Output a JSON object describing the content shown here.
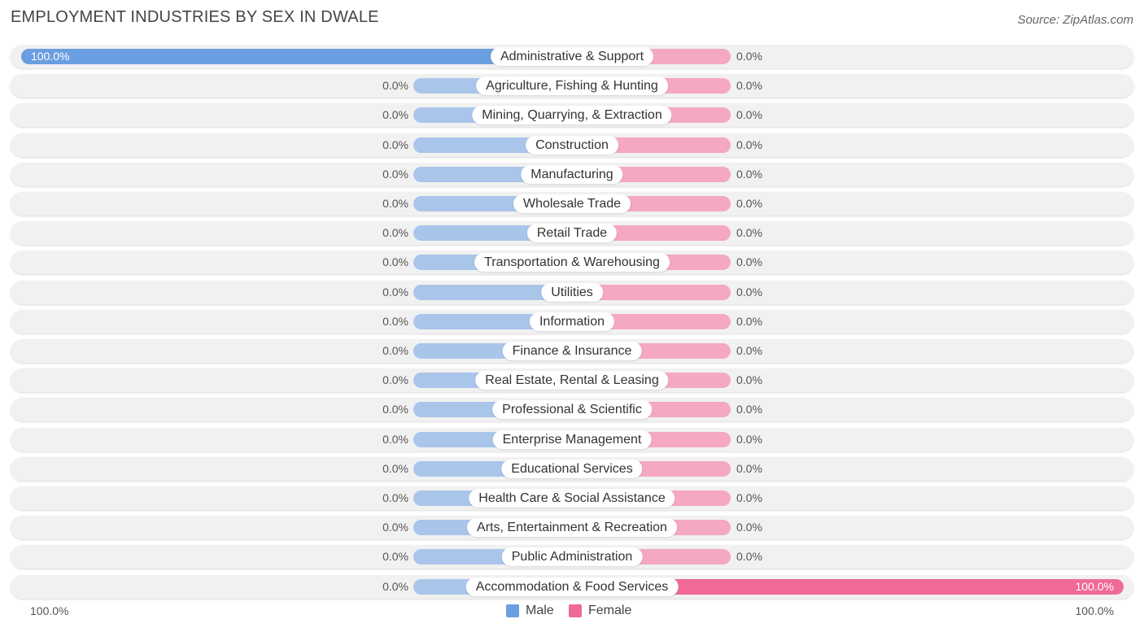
{
  "header": {
    "title": "EMPLOYMENT INDUSTRIES BY SEX IN DWALE",
    "source": "Source: ZipAtlas.com"
  },
  "colors": {
    "male": "#a9c6ea",
    "male_full": "#6a9ee0",
    "female": "#f4a8c1",
    "female_full": "#ef6a95"
  },
  "axis": {
    "left_label": "100.0%",
    "right_label": "100.0%"
  },
  "legend": {
    "male_label": "Male",
    "female_label": "Female"
  },
  "chart_data": {
    "type": "bar",
    "orientation": "horizontal-diverging",
    "title": "EMPLOYMENT INDUSTRIES BY SEX IN DWALE",
    "categories": [
      "Administrative & Support",
      "Agriculture, Fishing & Hunting",
      "Mining, Quarrying, & Extraction",
      "Construction",
      "Manufacturing",
      "Wholesale Trade",
      "Retail Trade",
      "Transportation & Warehousing",
      "Utilities",
      "Information",
      "Finance & Insurance",
      "Real Estate, Rental & Leasing",
      "Professional & Scientific",
      "Enterprise Management",
      "Educational Services",
      "Health Care & Social Assistance",
      "Arts, Entertainment & Recreation",
      "Public Administration",
      "Accommodation & Food Services"
    ],
    "series": [
      {
        "name": "Male",
        "values": [
          100.0,
          0,
          0,
          0,
          0,
          0,
          0,
          0,
          0,
          0,
          0,
          0,
          0,
          0,
          0,
          0,
          0,
          0,
          0.0
        ]
      },
      {
        "name": "Female",
        "values": [
          0.0,
          0,
          0,
          0,
          0,
          0,
          0,
          0,
          0,
          0,
          0,
          0,
          0,
          0,
          0,
          0,
          0,
          0,
          100.0
        ]
      }
    ],
    "value_labels": {
      "male": [
        "100.0%",
        "0.0%",
        "0.0%",
        "0.0%",
        "0.0%",
        "0.0%",
        "0.0%",
        "0.0%",
        "0.0%",
        "0.0%",
        "0.0%",
        "0.0%",
        "0.0%",
        "0.0%",
        "0.0%",
        "0.0%",
        "0.0%",
        "0.0%",
        "0.0%"
      ],
      "female": [
        "0.0%",
        "0.0%",
        "0.0%",
        "0.0%",
        "0.0%",
        "0.0%",
        "0.0%",
        "0.0%",
        "0.0%",
        "0.0%",
        "0.0%",
        "0.0%",
        "0.0%",
        "0.0%",
        "0.0%",
        "0.0%",
        "0.0%",
        "0.0%",
        "100.0%"
      ]
    },
    "xlim": [
      0,
      100
    ],
    "legend_position": "bottom-center"
  }
}
